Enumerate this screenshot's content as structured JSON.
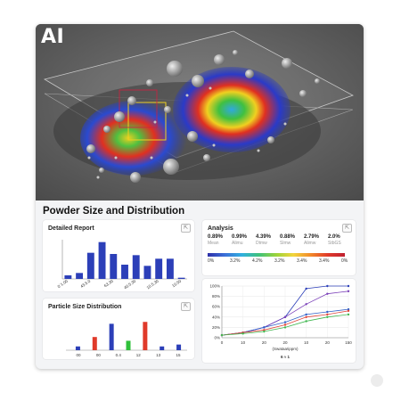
{
  "hero": {
    "logo_text": "AI"
  },
  "page_title": "Powder Size and Distribution",
  "panels": {
    "detailed_report": {
      "title": "Detailed Report",
      "button_icon": "expand-icon"
    },
    "particle_size": {
      "title": "Particle Size Distribution",
      "button_icon": "expand-icon"
    },
    "analysis": {
      "title": "Analysis",
      "button_icon": "expand-icon",
      "stats": [
        {
          "value": "0.89%",
          "label": "Mean"
        },
        {
          "value": "0.99%",
          "label": "Alimu"
        },
        {
          "value": "4.39%",
          "label": "Dtmw"
        },
        {
          "value": "0.88%",
          "label": "Slmw"
        },
        {
          "value": "2.79%",
          "label": "Alimw"
        },
        {
          "value": "2.0%",
          "label": "StbGS"
        }
      ],
      "scale_labels": [
        "0%",
        "3.2%",
        "4.2%",
        "3.2%",
        "3.4%",
        "3.4%",
        "0%"
      ]
    },
    "cumulative": {
      "xlabel": "(Swataa!ippm)",
      "footer": "6 ≈ 1"
    }
  },
  "chart_data": [
    {
      "type": "bar",
      "title": "Detailed Report",
      "categories": [
        "0`1.00",
        "",
        "43.5.0",
        "",
        "63.30",
        "",
        "40.5.30",
        "",
        "10.5.30",
        "",
        "10.50"
      ],
      "x_tick_labels": [
        "0`1.00",
        "43.5.0",
        "63.30",
        "40.5.30",
        "10.5.30",
        "10.50"
      ],
      "values": [
        3,
        5,
        22,
        31,
        21,
        12,
        20,
        11,
        17,
        17,
        1
      ],
      "ylim": [
        0,
        33
      ],
      "color": "#2c3fb8"
    },
    {
      "type": "bar",
      "title": "Particle Size Distribution",
      "x_tick_labels": [
        "00",
        "00",
        "0.4",
        "12",
        "13",
        "15"
      ],
      "bars": [
        {
          "value": 2,
          "color": "#2c3fb8"
        },
        {
          "value": 7,
          "color": "#e03a2a"
        },
        {
          "value": 14,
          "color": "#2c3fb8"
        },
        {
          "value": 5,
          "color": "#2fc03a"
        },
        {
          "value": 15,
          "color": "#e03a2a"
        },
        {
          "value": 2,
          "color": "#2c3fb8"
        },
        {
          "value": 3,
          "color": "#2c3fb8"
        }
      ],
      "ylim": [
        0,
        17
      ]
    },
    {
      "type": "line",
      "x_tick_labels": [
        "0",
        "10",
        "20",
        "20",
        "10",
        "20",
        "150"
      ],
      "x": [
        0,
        1,
        2,
        3,
        4,
        5,
        6
      ],
      "y_tick_labels": [
        "100%",
        "80%",
        "60%",
        "40%",
        "20%",
        "0%"
      ],
      "ylim": [
        0,
        100
      ],
      "series": [
        {
          "color": "#2c3fb8",
          "values": [
            5,
            10,
            20,
            40,
            95,
            100,
            100
          ]
        },
        {
          "color": "#7a3fb8",
          "values": [
            5,
            10,
            20,
            40,
            65,
            85,
            90
          ]
        },
        {
          "color": "#3060c8",
          "values": [
            5,
            10,
            20,
            30,
            45,
            50,
            55
          ]
        },
        {
          "color": "#e0443a",
          "values": [
            5,
            10,
            15,
            25,
            40,
            45,
            52
          ]
        },
        {
          "color": "#40b850",
          "values": [
            5,
            8,
            12,
            20,
            32,
            40,
            45
          ]
        }
      ]
    }
  ]
}
